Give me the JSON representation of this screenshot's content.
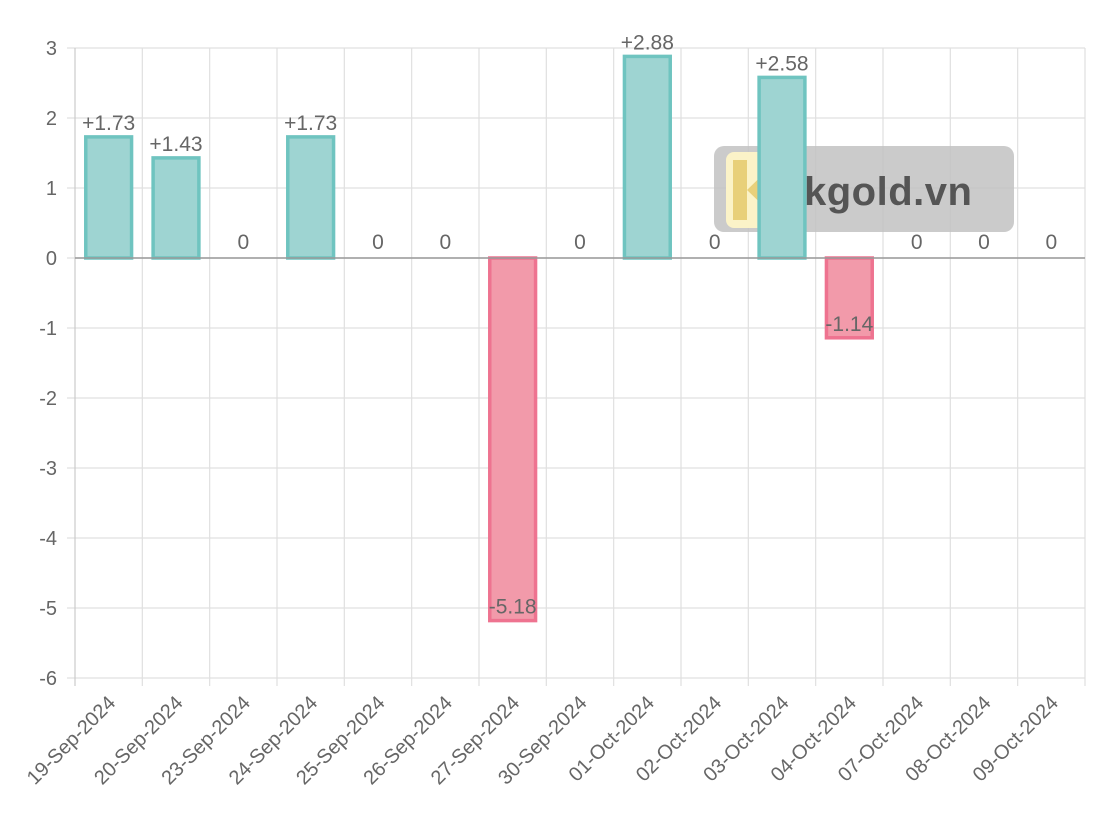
{
  "chart_data": {
    "type": "bar",
    "categories": [
      "19-Sep-2024",
      "20-Sep-2024",
      "23-Sep-2024",
      "24-Sep-2024",
      "25-Sep-2024",
      "26-Sep-2024",
      "27-Sep-2024",
      "30-Sep-2024",
      "01-Oct-2024",
      "02-Oct-2024",
      "03-Oct-2024",
      "04-Oct-2024",
      "07-Oct-2024",
      "08-Oct-2024",
      "09-Oct-2024"
    ],
    "values": [
      1.73,
      1.43,
      0,
      1.73,
      0,
      0,
      -5.18,
      0,
      2.88,
      0,
      2.58,
      -1.14,
      0,
      0,
      0
    ],
    "data_labels": [
      "+1.73",
      "+1.43",
      "0",
      "+1.73",
      "0",
      "0",
      "-5.18",
      "0",
      "+2.88",
      "0",
      "+2.58",
      "-1.14",
      "0",
      "0",
      "0"
    ],
    "ylim": [
      -6,
      3
    ],
    "yticks": [
      "3",
      "2",
      "1",
      "0",
      "-1",
      "-2",
      "-3",
      "-4",
      "-5",
      "-6"
    ],
    "grid": true,
    "title": "",
    "xlabel": "",
    "ylabel": "",
    "colors": {
      "positive_fill": "#9ed4d2",
      "positive_stroke": "#6fc4c0",
      "negative_fill": "#f29aaa",
      "negative_stroke": "#ee7390"
    }
  },
  "watermark": {
    "text": "kgold.vn"
  }
}
